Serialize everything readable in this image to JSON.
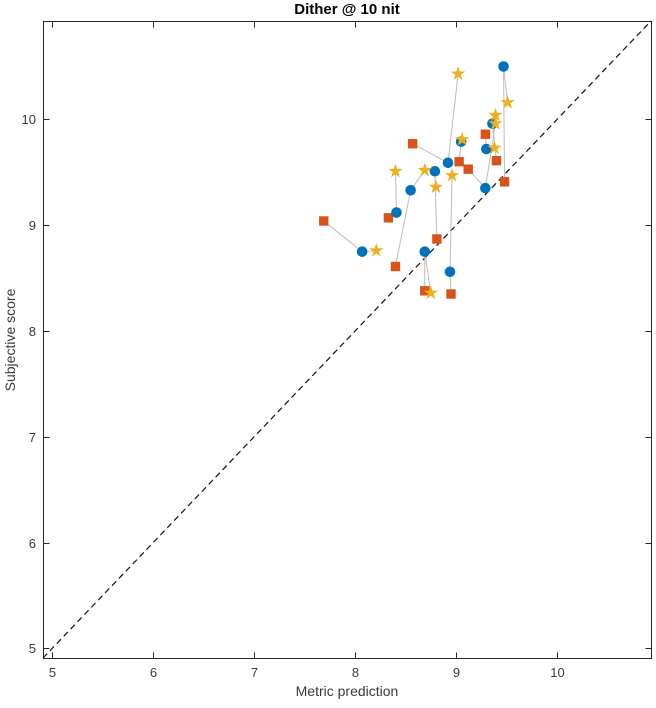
{
  "title": "Dither @ 10 nit",
  "axes": {
    "xlabel": "Metric prediction",
    "ylabel": "Subjective score",
    "xticks": [
      5,
      6,
      7,
      8,
      9,
      10
    ],
    "yticks": [
      5,
      6,
      7,
      8,
      9,
      10
    ],
    "xlim": [
      4.91,
      10.93
    ],
    "ylim": [
      4.91,
      10.93
    ],
    "box": true,
    "grid": false
  },
  "colors": {
    "circle_marker": "#0072BD",
    "square_marker": "#D95319",
    "star_marker": "#EDB120",
    "connector_line": "#BDBDBD",
    "identity_line": "#111111",
    "axis_line": "#262626",
    "tick_text": "#3A3A3A",
    "background": "#FFFFFF"
  },
  "chart_data": {
    "type": "scatter",
    "title": "Dither @ 10 nit",
    "xlabel": "Metric prediction",
    "ylabel": "Subjective score",
    "xlim": [
      4.91,
      10.93
    ],
    "ylim": [
      4.91,
      10.93
    ],
    "legend": "none",
    "grid": false,
    "identity_line": {
      "style": "dashed",
      "from": [
        4.91,
        4.91
      ],
      "to": [
        10.93,
        10.93
      ]
    },
    "series_info": [
      {
        "name": "circle-series",
        "marker": "circle",
        "color": "#0072BD"
      },
      {
        "name": "square-series",
        "marker": "square",
        "color": "#D95319"
      },
      {
        "name": "star-series",
        "marker": "pentagram",
        "color": "#EDB120"
      }
    ],
    "groups": [
      {
        "circle": [
          8.92,
          9.59
        ],
        "square": [
          8.57,
          9.77
        ],
        "star": [
          9.02,
          10.43
        ]
      },
      {
        "circle": [
          8.07,
          8.75
        ],
        "square": [
          7.69,
          9.04
        ],
        "star": [
          8.21,
          8.76
        ]
      },
      {
        "circle": [
          8.41,
          9.12
        ],
        "square": [
          8.33,
          9.07
        ],
        "star": [
          8.4,
          9.51
        ]
      },
      {
        "circle": [
          8.55,
          9.33
        ],
        "square": [
          8.4,
          8.61
        ],
        "star": [
          8.69,
          9.52
        ]
      },
      {
        "circle": [
          8.79,
          9.51
        ],
        "square": [
          8.81,
          8.87
        ],
        "star": [
          8.8,
          9.36
        ]
      },
      {
        "circle": [
          8.69,
          8.75
        ],
        "square": [
          8.69,
          8.38
        ],
        "star": [
          8.75,
          8.36
        ]
      },
      {
        "circle": [
          8.94,
          8.56
        ],
        "square": [
          8.95,
          8.35
        ],
        "star": [
          8.96,
          9.47
        ]
      },
      {
        "circle": [
          9.47,
          10.5
        ],
        "square": [
          9.48,
          9.41
        ],
        "star": [
          9.51,
          10.16
        ]
      },
      {
        "circle": [
          9.36,
          9.96
        ],
        "square": [
          9.4,
          9.61
        ],
        "star": [
          9.39,
          10.04
        ]
      },
      {
        "circle": [
          9.05,
          9.79
        ],
        "square": [
          9.03,
          9.6
        ],
        "star": [
          9.06,
          9.81
        ]
      },
      {
        "circle": [
          9.3,
          9.72
        ],
        "square": [
          9.29,
          9.86
        ],
        "star": [
          9.38,
          9.73
        ]
      },
      {
        "circle": [
          9.29,
          9.35
        ],
        "square": [
          9.12,
          9.53
        ],
        "star": [
          9.39,
          9.96
        ]
      }
    ]
  }
}
